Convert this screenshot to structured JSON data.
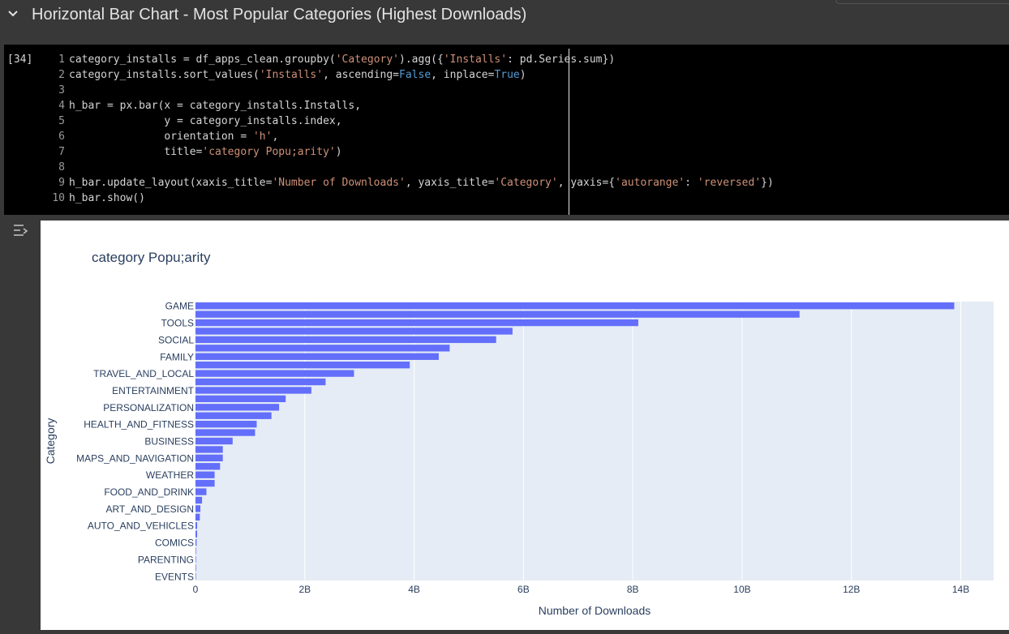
{
  "section": {
    "title": "Horizontal Bar Chart - Most Popular Categories (Highest Downloads)"
  },
  "cell": {
    "exec_count": "[34]",
    "lines": [
      {
        "n": "1",
        "parts": [
          {
            "t": "category_installs = df_apps_clean.groupby(",
            "c": "code"
          },
          {
            "t": "'Category'",
            "c": "str"
          },
          {
            "t": ").agg({",
            "c": "code"
          },
          {
            "t": "'Installs'",
            "c": "str"
          },
          {
            "t": ": pd.Series.sum})",
            "c": "code"
          }
        ]
      },
      {
        "n": "2",
        "parts": [
          {
            "t": "category_installs.sort_values(",
            "c": "code"
          },
          {
            "t": "'Installs'",
            "c": "str"
          },
          {
            "t": ", ascending=",
            "c": "code"
          },
          {
            "t": "False",
            "c": "kw"
          },
          {
            "t": ", inplace=",
            "c": "code"
          },
          {
            "t": "True",
            "c": "kw"
          },
          {
            "t": ")",
            "c": "code"
          }
        ]
      },
      {
        "n": "3",
        "parts": []
      },
      {
        "n": "4",
        "parts": [
          {
            "t": "h_bar = px.bar(x = category_installs.Installs,",
            "c": "code"
          }
        ]
      },
      {
        "n": "5",
        "parts": [
          {
            "t": "               y = category_installs.index,",
            "c": "code"
          }
        ]
      },
      {
        "n": "6",
        "parts": [
          {
            "t": "               orientation = ",
            "c": "code"
          },
          {
            "t": "'h'",
            "c": "str"
          },
          {
            "t": ",",
            "c": "code"
          }
        ]
      },
      {
        "n": "7",
        "parts": [
          {
            "t": "               title=",
            "c": "code"
          },
          {
            "t": "'category Popu;arity'",
            "c": "str"
          },
          {
            "t": ")",
            "c": "code"
          }
        ]
      },
      {
        "n": "8",
        "parts": []
      },
      {
        "n": "9",
        "parts": [
          {
            "t": "h_bar.update_layout(xaxis_title=",
            "c": "code"
          },
          {
            "t": "'Number of Downloads'",
            "c": "str"
          },
          {
            "t": ", yaxis_title=",
            "c": "code"
          },
          {
            "t": "'Category'",
            "c": "str"
          },
          {
            "t": ", yaxis={",
            "c": "code"
          },
          {
            "t": "'autorange'",
            "c": "str"
          },
          {
            "t": ": ",
            "c": "code"
          },
          {
            "t": "'reversed'",
            "c": "str"
          },
          {
            "t": "})",
            "c": "code"
          }
        ]
      },
      {
        "n": "10",
        "parts": [
          {
            "t": "h_bar.show()",
            "c": "code"
          }
        ]
      }
    ]
  },
  "chart_data": {
    "type": "bar",
    "orientation": "h",
    "title": "category Popu;arity",
    "xlabel": "Number of Downloads",
    "ylabel": "Category",
    "xlim": [
      0,
      14.6
    ],
    "x_unit": "B",
    "xticks": [
      {
        "v": 0,
        "label": "0"
      },
      {
        "v": 2,
        "label": "2B"
      },
      {
        "v": 4,
        "label": "4B"
      },
      {
        "v": 6,
        "label": "6B"
      },
      {
        "v": 8,
        "label": "8B"
      },
      {
        "v": 10,
        "label": "10B"
      },
      {
        "v": 12,
        "label": "12B"
      },
      {
        "v": 14,
        "label": "14B"
      }
    ],
    "grid": true,
    "y_reversed": true,
    "bar_color": "#636efa",
    "plot_bg": "#e5ecf6",
    "values": [
      13.88,
      11.05,
      8.1,
      5.8,
      5.5,
      4.65,
      4.45,
      3.92,
      2.9,
      2.38,
      2.12,
      1.65,
      1.53,
      1.39,
      1.12,
      1.09,
      0.68,
      0.5,
      0.5,
      0.45,
      0.35,
      0.35,
      0.2,
      0.12,
      0.09,
      0.08,
      0.03,
      0.03,
      0.02,
      0.01,
      0.01,
      0.01,
      0.005
    ],
    "ytick_labels": [
      {
        "i": 0,
        "label": "GAME"
      },
      {
        "i": 2,
        "label": "TOOLS"
      },
      {
        "i": 4,
        "label": "SOCIAL"
      },
      {
        "i": 6,
        "label": "FAMILY"
      },
      {
        "i": 8,
        "label": "TRAVEL_AND_LOCAL"
      },
      {
        "i": 10,
        "label": "ENTERTAINMENT"
      },
      {
        "i": 12,
        "label": "PERSONALIZATION"
      },
      {
        "i": 14,
        "label": "HEALTH_AND_FITNESS"
      },
      {
        "i": 16,
        "label": "BUSINESS"
      },
      {
        "i": 18,
        "label": "MAPS_AND_NAVIGATION"
      },
      {
        "i": 20,
        "label": "WEATHER"
      },
      {
        "i": 22,
        "label": "FOOD_AND_DRINK"
      },
      {
        "i": 24,
        "label": "ART_AND_DESIGN"
      },
      {
        "i": 26,
        "label": "AUTO_AND_VEHICLES"
      },
      {
        "i": 28,
        "label": "COMICS"
      },
      {
        "i": 30,
        "label": "PARENTING"
      },
      {
        "i": 32,
        "label": "EVENTS"
      }
    ]
  }
}
